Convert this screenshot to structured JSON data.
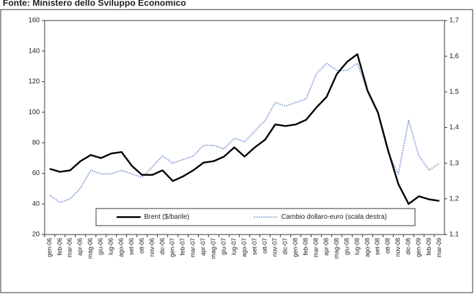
{
  "chart_data": {
    "type": "line",
    "title": "Fonte: Ministero dello Sviluppo Economico",
    "categories": [
      "gen-06",
      "feb-06",
      "mar-06",
      "apr-06",
      "mag-06",
      "giu-06",
      "lug-06",
      "ago-06",
      "set-06",
      "ott-06",
      "nov-06",
      "dic-06",
      "gen-07",
      "feb-07",
      "mar-07",
      "apr-07",
      "mag-07",
      "giu-07",
      "lug-07",
      "ago-07",
      "set-07",
      "ott-07",
      "nov-07",
      "dic-07",
      "gen-08",
      "feb-08",
      "mar-08",
      "apr-08",
      "mag-08",
      "giu-08",
      "lug-08",
      "ago-08",
      "set-08",
      "ott-08",
      "nov-08",
      "dic-08",
      "gen-09",
      "feb-09",
      "mar-09"
    ],
    "series": [
      {
        "name": "Brent ($/barile)",
        "color": "#000000",
        "values": [
          63,
          61,
          62,
          68,
          72,
          70,
          73,
          74,
          65,
          59,
          59,
          62,
          55,
          58,
          62,
          67,
          68,
          71,
          77,
          71,
          77,
          82,
          92,
          91,
          92,
          95,
          103,
          110,
          125,
          133,
          138,
          114,
          100,
          75,
          53,
          40,
          45,
          43,
          42
        ]
      },
      {
        "name": "Cambio dollaro-euro (scala destra)",
        "color": "#8fa6d8",
        "axis": "y2",
        "values": [
          1.21,
          1.19,
          1.2,
          1.23,
          1.28,
          1.27,
          1.27,
          1.28,
          1.27,
          1.26,
          1.29,
          1.32,
          1.3,
          1.31,
          1.32,
          1.35,
          1.35,
          1.34,
          1.37,
          1.36,
          1.39,
          1.42,
          1.47,
          1.46,
          1.47,
          1.48,
          1.55,
          1.58,
          1.56,
          1.56,
          1.58,
          1.5,
          1.44,
          1.33,
          1.27,
          1.42,
          1.32,
          1.28,
          1.3
        ]
      }
    ],
    "ylim": [
      20,
      160
    ],
    "yticks": [
      20,
      40,
      60,
      80,
      100,
      120,
      140,
      160
    ],
    "y2lim": [
      1.1,
      1.7
    ],
    "y2ticks": [
      {
        "value": 1.1,
        "label": "1,1"
      },
      {
        "value": 1.2,
        "label": "1,2"
      },
      {
        "value": 1.3,
        "label": "1,3"
      },
      {
        "value": 1.4,
        "label": "1,4"
      },
      {
        "value": 1.5,
        "label": "1,5"
      },
      {
        "value": 1.6,
        "label": "1,6"
      },
      {
        "value": 1.7,
        "label": "1,7"
      }
    ],
    "grid": false
  }
}
